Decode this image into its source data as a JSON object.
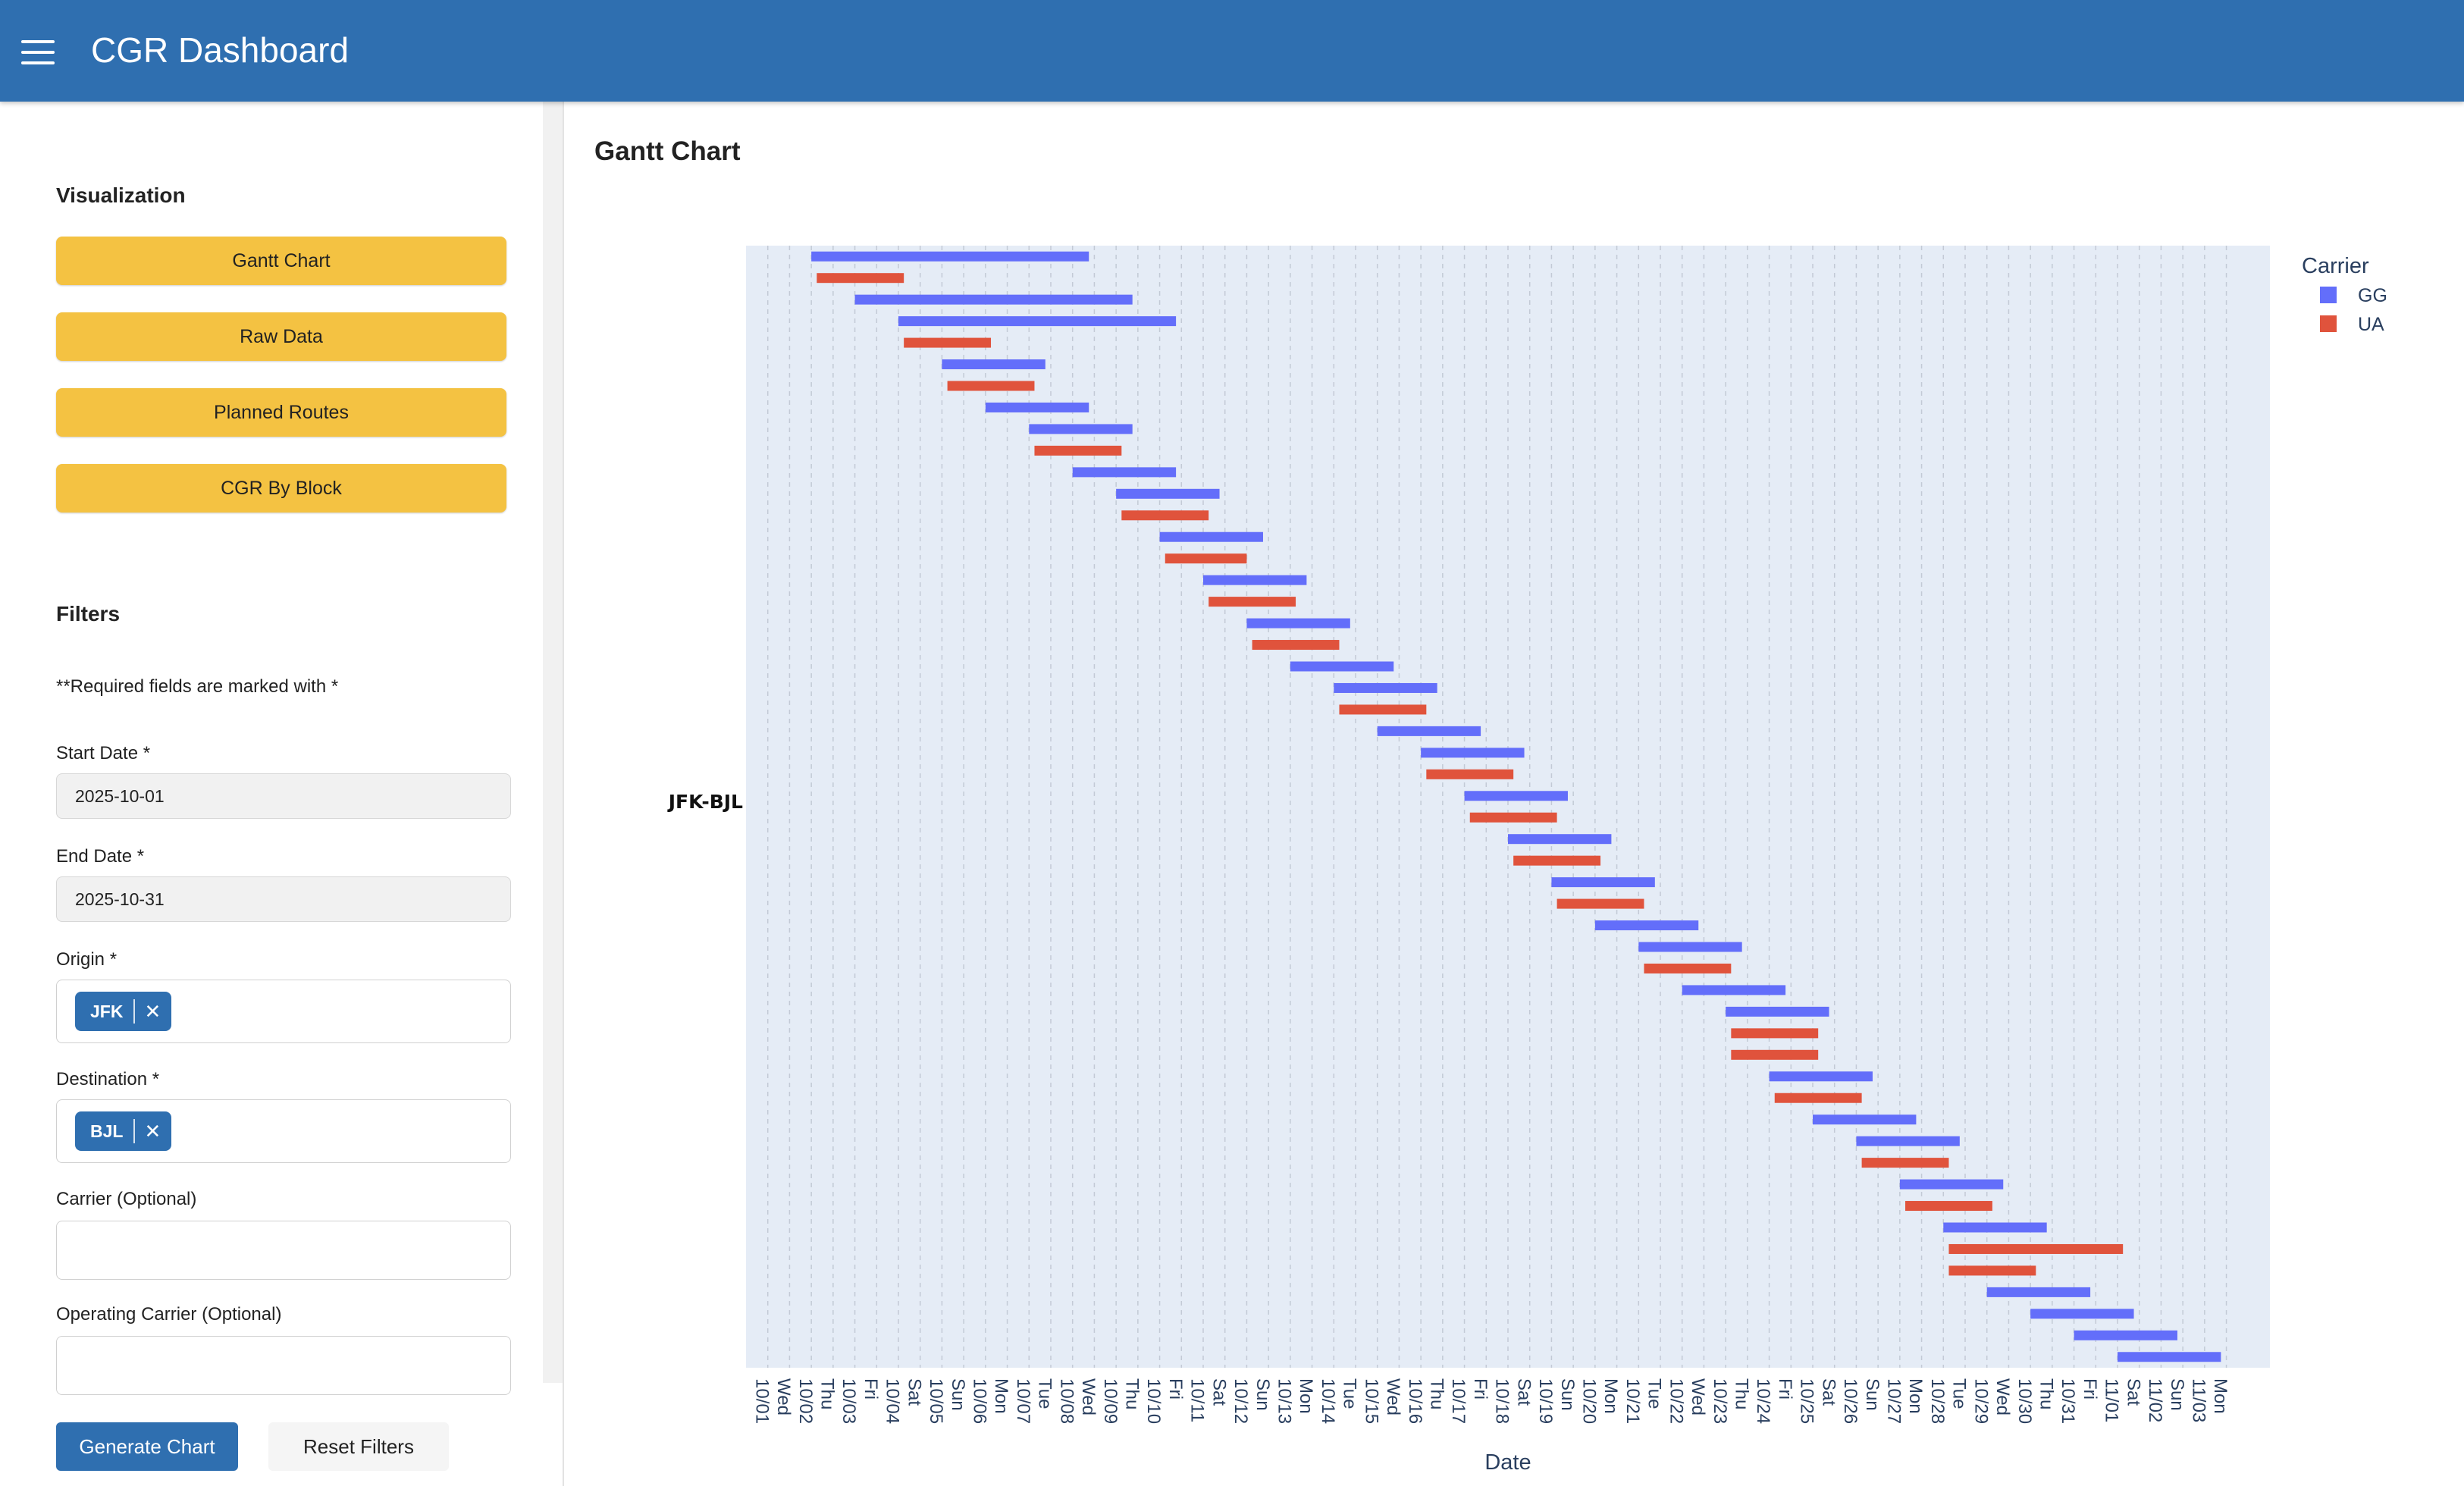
{
  "app": {
    "title": "CGR Dashboard"
  },
  "sidebar": {
    "visualization_title": "Visualization",
    "viz_buttons": [
      "Gantt Chart",
      "Raw Data",
      "Planned Routes",
      "CGR By Block"
    ],
    "filters_title": "Filters",
    "required_note": "**Required fields are marked with *",
    "start_date": {
      "label": "Start Date *",
      "value": "2025-10-01"
    },
    "end_date": {
      "label": "End Date *",
      "value": "2025-10-31"
    },
    "origin": {
      "label": "Origin *",
      "chip": "JFK"
    },
    "destination": {
      "label": "Destination *",
      "chip": "BJL"
    },
    "carrier": {
      "label": "Carrier (Optional)",
      "value": ""
    },
    "operating_carrier": {
      "label": "Operating Carrier (Optional)",
      "value": ""
    },
    "generate_label": "Generate Chart",
    "reset_label": "Reset Filters"
  },
  "main": {
    "title": "Gantt Chart"
  },
  "colors": {
    "header": "#2f6fb0",
    "button": "#f4c242",
    "GG": "#636efa",
    "UA": "#e0533c",
    "plot_bg": "#e5ecf6"
  },
  "chart_data": {
    "type": "gantt",
    "title": "",
    "xlabel": "Date",
    "ylabel": "",
    "y_category": "JFK-BJL",
    "legend_title": "Carrier",
    "legend_position": "top-right",
    "x_tick_labels": [
      "10/01",
      "Wed",
      "10/02",
      "Thu",
      "10/03",
      "Fri",
      "10/04",
      "Sat",
      "10/05",
      "Sun",
      "10/06",
      "Mon",
      "10/07",
      "Tue",
      "10/08",
      "Wed",
      "10/09",
      "Thu",
      "10/10",
      "Fri",
      "10/11",
      "Sat",
      "10/12",
      "Sun",
      "10/13",
      "Mon",
      "10/14",
      "Tue",
      "10/15",
      "Wed",
      "10/16",
      "Thu",
      "10/17",
      "Fri",
      "10/18",
      "Sat",
      "10/19",
      "Sun",
      "10/20",
      "Mon",
      "10/21",
      "Tue",
      "10/22",
      "Wed",
      "10/23",
      "Thu",
      "10/24",
      "Fri",
      "10/25",
      "Sat",
      "10/26",
      "Sun",
      "10/27",
      "Mon",
      "10/28",
      "Tue",
      "10/29",
      "Wed",
      "10/30",
      "Thu",
      "10/31",
      "Fri",
      "11/01",
      "Sat",
      "11/02",
      "Sun",
      "11/03",
      "Mon"
    ],
    "x_range": [
      "2025-09-30 12:00",
      "2025-11-04 12:00"
    ],
    "series": [
      {
        "name": "GG",
        "color": "#636efa"
      },
      {
        "name": "UA",
        "color": "#e0533c"
      }
    ],
    "tasks": [
      {
        "carrier": "GG",
        "start": "2025-10-02 00:00",
        "end": "2025-10-08 09:00"
      },
      {
        "carrier": "UA",
        "start": "2025-10-02 03:00",
        "end": "2025-10-04 03:00"
      },
      {
        "carrier": "GG",
        "start": "2025-10-03 00:00",
        "end": "2025-10-09 09:00"
      },
      {
        "carrier": "GG",
        "start": "2025-10-04 00:00",
        "end": "2025-10-10 09:00"
      },
      {
        "carrier": "UA",
        "start": "2025-10-04 03:00",
        "end": "2025-10-06 03:00"
      },
      {
        "carrier": "GG",
        "start": "2025-10-05 00:00",
        "end": "2025-10-07 09:00"
      },
      {
        "carrier": "UA",
        "start": "2025-10-05 03:00",
        "end": "2025-10-07 03:00"
      },
      {
        "carrier": "GG",
        "start": "2025-10-06 00:00",
        "end": "2025-10-08 09:00"
      },
      {
        "carrier": "GG",
        "start": "2025-10-07 00:00",
        "end": "2025-10-09 09:00"
      },
      {
        "carrier": "UA",
        "start": "2025-10-07 03:00",
        "end": "2025-10-09 03:00"
      },
      {
        "carrier": "GG",
        "start": "2025-10-08 00:00",
        "end": "2025-10-10 09:00"
      },
      {
        "carrier": "GG",
        "start": "2025-10-09 00:00",
        "end": "2025-10-11 09:00"
      },
      {
        "carrier": "UA",
        "start": "2025-10-09 03:00",
        "end": "2025-10-11 03:00"
      },
      {
        "carrier": "GG",
        "start": "2025-10-10 00:00",
        "end": "2025-10-12 09:00"
      },
      {
        "carrier": "UA",
        "start": "2025-10-10 03:00",
        "end": "2025-10-12 00:00"
      },
      {
        "carrier": "GG",
        "start": "2025-10-11 00:00",
        "end": "2025-10-13 09:00"
      },
      {
        "carrier": "UA",
        "start": "2025-10-11 03:00",
        "end": "2025-10-13 03:00"
      },
      {
        "carrier": "GG",
        "start": "2025-10-12 00:00",
        "end": "2025-10-14 09:00"
      },
      {
        "carrier": "UA",
        "start": "2025-10-12 03:00",
        "end": "2025-10-14 03:00"
      },
      {
        "carrier": "GG",
        "start": "2025-10-13 00:00",
        "end": "2025-10-15 09:00"
      },
      {
        "carrier": "GG",
        "start": "2025-10-14 00:00",
        "end": "2025-10-16 09:00"
      },
      {
        "carrier": "UA",
        "start": "2025-10-14 03:00",
        "end": "2025-10-16 03:00"
      },
      {
        "carrier": "GG",
        "start": "2025-10-15 00:00",
        "end": "2025-10-17 09:00"
      },
      {
        "carrier": "GG",
        "start": "2025-10-16 00:00",
        "end": "2025-10-18 09:00"
      },
      {
        "carrier": "UA",
        "start": "2025-10-16 03:00",
        "end": "2025-10-18 03:00"
      },
      {
        "carrier": "GG",
        "start": "2025-10-17 00:00",
        "end": "2025-10-19 09:00"
      },
      {
        "carrier": "UA",
        "start": "2025-10-17 03:00",
        "end": "2025-10-19 03:00"
      },
      {
        "carrier": "GG",
        "start": "2025-10-18 00:00",
        "end": "2025-10-20 09:00"
      },
      {
        "carrier": "UA",
        "start": "2025-10-18 03:00",
        "end": "2025-10-20 03:00"
      },
      {
        "carrier": "GG",
        "start": "2025-10-19 00:00",
        "end": "2025-10-21 09:00"
      },
      {
        "carrier": "UA",
        "start": "2025-10-19 03:00",
        "end": "2025-10-21 03:00"
      },
      {
        "carrier": "GG",
        "start": "2025-10-20 00:00",
        "end": "2025-10-22 09:00"
      },
      {
        "carrier": "GG",
        "start": "2025-10-21 00:00",
        "end": "2025-10-23 09:00"
      },
      {
        "carrier": "UA",
        "start": "2025-10-21 03:00",
        "end": "2025-10-23 03:00"
      },
      {
        "carrier": "GG",
        "start": "2025-10-22 00:00",
        "end": "2025-10-24 09:00"
      },
      {
        "carrier": "GG",
        "start": "2025-10-23 00:00",
        "end": "2025-10-25 09:00"
      },
      {
        "carrier": "UA",
        "start": "2025-10-23 03:00",
        "end": "2025-10-25 03:00"
      },
      {
        "carrier": "UA",
        "start": "2025-10-23 03:00",
        "end": "2025-10-25 03:00"
      },
      {
        "carrier": "GG",
        "start": "2025-10-24 00:00",
        "end": "2025-10-26 09:00"
      },
      {
        "carrier": "UA",
        "start": "2025-10-24 03:00",
        "end": "2025-10-26 03:00"
      },
      {
        "carrier": "GG",
        "start": "2025-10-25 00:00",
        "end": "2025-10-27 09:00"
      },
      {
        "carrier": "GG",
        "start": "2025-10-26 00:00",
        "end": "2025-10-28 09:00"
      },
      {
        "carrier": "UA",
        "start": "2025-10-26 03:00",
        "end": "2025-10-28 03:00"
      },
      {
        "carrier": "GG",
        "start": "2025-10-27 00:00",
        "end": "2025-10-29 09:00"
      },
      {
        "carrier": "UA",
        "start": "2025-10-27 03:00",
        "end": "2025-10-29 03:00"
      },
      {
        "carrier": "GG",
        "start": "2025-10-28 00:00",
        "end": "2025-10-30 09:00"
      },
      {
        "carrier": "UA",
        "start": "2025-10-28 03:00",
        "end": "2025-11-01 03:00"
      },
      {
        "carrier": "UA",
        "start": "2025-10-28 03:00",
        "end": "2025-10-30 03:00"
      },
      {
        "carrier": "GG",
        "start": "2025-10-29 00:00",
        "end": "2025-10-31 09:00"
      },
      {
        "carrier": "GG",
        "start": "2025-10-30 00:00",
        "end": "2025-11-01 09:00"
      },
      {
        "carrier": "GG",
        "start": "2025-10-31 00:00",
        "end": "2025-11-02 09:00"
      },
      {
        "carrier": "GG",
        "start": "2025-11-01 00:00",
        "end": "2025-11-03 09:00"
      }
    ]
  }
}
